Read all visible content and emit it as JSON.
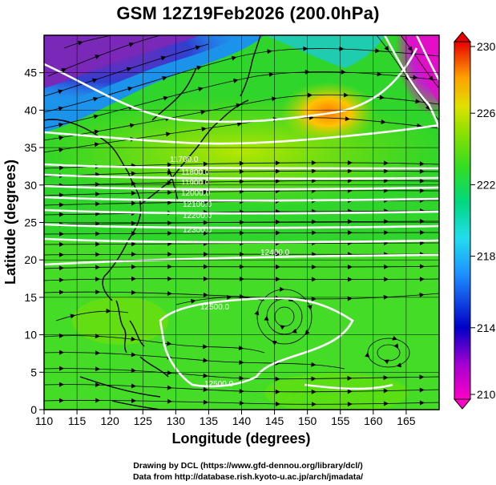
{
  "title": "GSM 12Z19Feb2026 (200.0hPa)",
  "x_axis": {
    "label": "Longitude (degrees)",
    "ticks": [
      "110",
      "115",
      "120",
      "125",
      "130",
      "135",
      "140",
      "145",
      "150",
      "155",
      "160",
      "165"
    ]
  },
  "y_axis": {
    "label": "Latitude (degrees)",
    "ticks": [
      "0",
      "5",
      "10",
      "15",
      "20",
      "25",
      "30",
      "35",
      "40",
      "45"
    ]
  },
  "colorbar": {
    "ticks": [
      "210",
      "214",
      "218",
      "222",
      "226",
      "230"
    ],
    "colors": [
      "#ff00c8",
      "#0000c8",
      "#1e90ff",
      "#22ccff",
      "#00d890",
      "#33dd22",
      "#7ce000",
      "#c8e000",
      "#ffb000",
      "#ff5a00",
      "#e80000"
    ]
  },
  "contour_labels": [
    "11700.0",
    "11800.0",
    "11900.0",
    "12000.0",
    "12100.0",
    "12200.0",
    "12300.0",
    "12400.0",
    "12500.0",
    "12500.0"
  ],
  "credit_lines": [
    "Drawing by DCL (https://www.gfd-dennou.org/library/dcl/)",
    "Data from http://database.rish.kyoto-u.ac.jp/arch/jmadata/"
  ]
}
